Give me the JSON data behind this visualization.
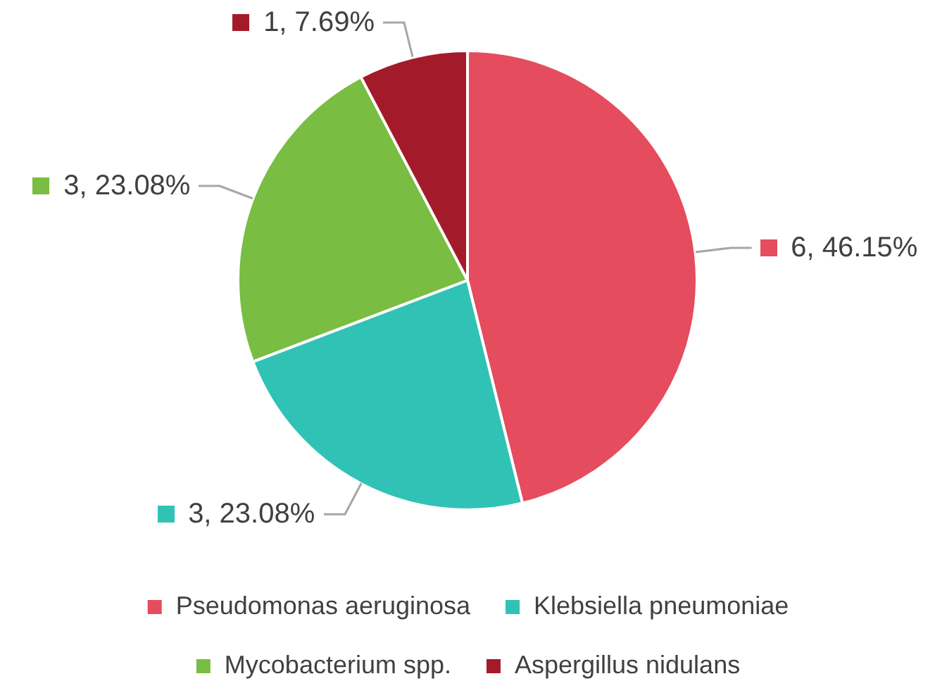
{
  "chart_data": {
    "type": "pie",
    "categories": [
      "Pseudomonas aeruginosa",
      "Klebsiella pneumoniae",
      "Mycobacterium spp.",
      "Aspergillus nidulans"
    ],
    "values": [
      6,
      3,
      3,
      1
    ],
    "colors": [
      "#e54c5e",
      "#31c2b6",
      "#79bd42",
      "#a31b2a"
    ],
    "value_labels": [
      "6, 46.15%",
      "3, 23.08%",
      "3, 23.08%",
      "1, 7.69%"
    ],
    "legend": "bottom"
  }
}
